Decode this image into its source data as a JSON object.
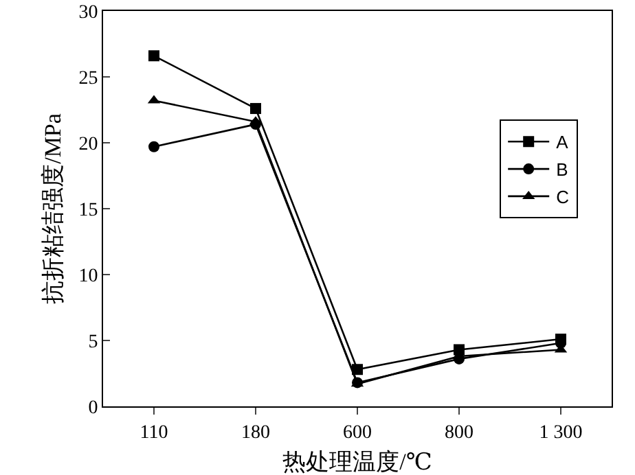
{
  "chart_data": {
    "type": "line",
    "xlabel": "热处理温度/℃",
    "ylabel": "抗折粘结强度/MPa",
    "categories": [
      "110",
      "180",
      "600",
      "800",
      "1 300"
    ],
    "ylim": [
      0,
      30
    ],
    "yticks": [
      0,
      5,
      10,
      15,
      20,
      25,
      30
    ],
    "grid": false,
    "legend": "right",
    "series": [
      {
        "name": "A",
        "color": "#000000",
        "marker": "square",
        "values": [
          26.6,
          22.6,
          2.8,
          4.3,
          5.1
        ]
      },
      {
        "name": "B",
        "color": "#000000",
        "marker": "circle",
        "values": [
          19.7,
          21.4,
          1.8,
          3.6,
          4.8
        ]
      },
      {
        "name": "C",
        "color": "#000000",
        "marker": "triangle",
        "values": [
          23.2,
          21.6,
          1.7,
          3.8,
          4.3
        ]
      }
    ]
  }
}
